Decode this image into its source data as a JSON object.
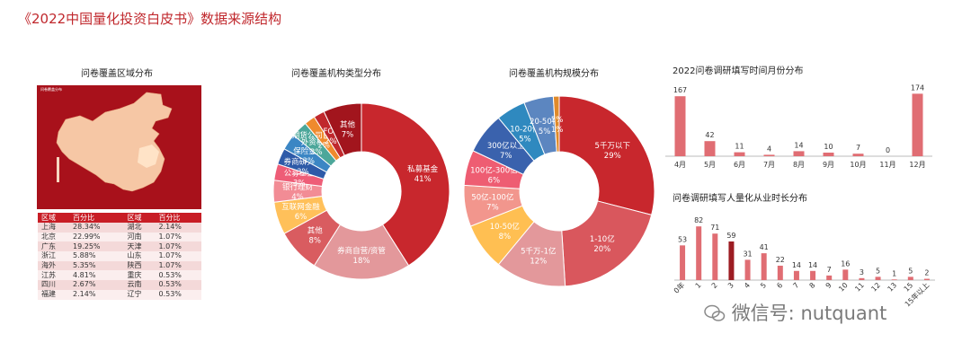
{
  "page_title": "《2022中国量化投资白皮书》数据来源结构",
  "watermark": "微信号: nutquant",
  "colors": {
    "accent": "#c0282d",
    "map_bg": "#a8111b",
    "bar": "#e06d73",
    "bar_dark": "#9c1c22"
  },
  "map_panel": {
    "title": "问卷覆盖区域分布",
    "legend_title": "问卷覆盖分布",
    "table_headers": [
      "区域",
      "百分比",
      "区域",
      "百分比"
    ],
    "table_rows": [
      [
        "上海",
        "28.34%",
        "湖北",
        "2.14%"
      ],
      [
        "北京",
        "22.99%",
        "河南",
        "1.07%"
      ],
      [
        "广东",
        "19.25%",
        "天津",
        "1.07%"
      ],
      [
        "浙江",
        "5.88%",
        "山东",
        "1.07%"
      ],
      [
        "海外",
        "5.35%",
        "陕西",
        "1.07%"
      ],
      [
        "江苏",
        "4.81%",
        "重庆",
        "0.53%"
      ],
      [
        "四川",
        "2.67%",
        "云南",
        "0.53%"
      ],
      [
        "福建",
        "2.14%",
        "辽宁",
        "0.53%"
      ]
    ]
  },
  "chart_data": [
    {
      "type": "pie",
      "title": "问卷覆盖机构类型分布",
      "slices": [
        {
          "label": "私募基金",
          "value": 41,
          "text": "41%",
          "color": "#c8272d"
        },
        {
          "label": "券商自营/资管",
          "value": 18,
          "text": "18%",
          "color": "#e3989b"
        },
        {
          "label": "其他",
          "value": 8,
          "text": "8%",
          "color": "#d95c60"
        },
        {
          "label": "互联网金融",
          "value": 6,
          "text": "6%",
          "color": "#ffc05a"
        },
        {
          "label": "银行理财",
          "value": 4,
          "text": "4%",
          "color": "#f28c95"
        },
        {
          "label": "公募基金",
          "value": 3,
          "text": "3%",
          "color": "#ee5d77"
        },
        {
          "label": "券商研究所",
          "value": 3,
          "text": "3%",
          "color": "#2e5aa8"
        },
        {
          "label": "保险资管",
          "value": 3,
          "text": "3%",
          "color": "#3b86c4"
        },
        {
          "label": "外资机构",
          "value": 3,
          "text": "3%",
          "color": "#4ca79a"
        },
        {
          "label": "期货公司自营/资管",
          "value": 2,
          "text": "2%",
          "color": "#ef8a2d"
        },
        {
          "label": "FOF",
          "value": 2,
          "text": "2%",
          "color": "#c0282d"
        },
        {
          "label": "其他",
          "value": 7,
          "text": "7%",
          "color": "#a2151d"
        }
      ]
    },
    {
      "type": "pie",
      "title": "问卷覆盖机构规模分布",
      "slices": [
        {
          "label": "5千万以下",
          "value": 29,
          "text": "29%",
          "color": "#c8272d"
        },
        {
          "label": "1-10亿",
          "value": 20,
          "text": "20%",
          "color": "#d9575d"
        },
        {
          "label": "5千万-1亿",
          "value": 12,
          "text": "12%",
          "color": "#e3989b"
        },
        {
          "label": "10-50亿",
          "value": 8,
          "text": "8%",
          "color": "#ffbf52"
        },
        {
          "label": "50亿-100亿",
          "value": 7,
          "text": "7%",
          "color": "#f2968d"
        },
        {
          "label": "100亿-300亿",
          "value": 6,
          "text": "6%",
          "color": "#ee5d72"
        },
        {
          "label": "300亿以上",
          "value": 7,
          "text": "7%",
          "color": "#3a62ad"
        },
        {
          "label": "10-20亿",
          "value": 5,
          "text": "5%",
          "color": "#2f89bf"
        },
        {
          "label": "20-50亿",
          "value": 5,
          "text": "5%",
          "color": "#5c86c0"
        },
        {
          "label": "5%",
          "value": 1,
          "text": "1%",
          "color": "#e08a2a"
        }
      ]
    },
    {
      "type": "bar",
      "title": "2022问卷调研填写时间月份分布",
      "categories": [
        "4月",
        "5月",
        "6月",
        "7月",
        "8月",
        "9月",
        "10月",
        "11月",
        "12月"
      ],
      "values": [
        167,
        42,
        11,
        4,
        14,
        10,
        7,
        0,
        174
      ],
      "ylim": [
        0,
        180
      ]
    },
    {
      "type": "bar",
      "title": "问卷调研填写人量化从业时长分布",
      "categories": [
        "0年",
        "1",
        "2",
        "3",
        "4",
        "5",
        "6",
        "7",
        "8",
        "9",
        "10",
        "11",
        "12",
        "13",
        "15",
        "15年以上"
      ],
      "values": [
        53,
        82,
        71,
        59,
        31,
        41,
        22,
        14,
        14,
        7,
        16,
        3,
        5,
        1,
        5,
        2
      ],
      "highlight_index": 3,
      "ylim": [
        0,
        85
      ]
    }
  ]
}
